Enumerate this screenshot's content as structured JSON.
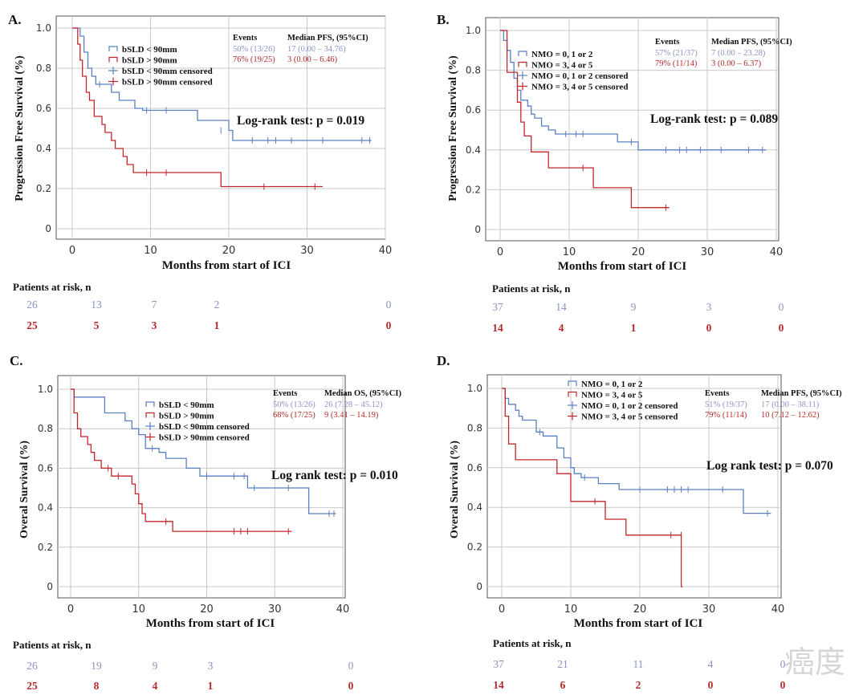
{
  "colors": {
    "blue": "#5b7fc4",
    "red": "#c0262b",
    "blueText": "#8a93c0",
    "redText": "#b22a2a",
    "grid": "#c8c8c8",
    "axis": "#555555"
  },
  "watermark": "癌度",
  "chart_data": [
    {
      "type": "line",
      "panel": "A.",
      "ylabel": "Progression Free Survival (%)",
      "xlabel": "Months from start of ICI",
      "xlim": [
        0,
        40
      ],
      "ylim": [
        0,
        1.0
      ],
      "xticks": [
        "0",
        "10",
        "20",
        "30",
        "40"
      ],
      "yticks": [
        "0",
        "0.2",
        "0.4",
        "0.6",
        "0.8",
        "1.0"
      ],
      "legend": [
        "bSLD < 90mm",
        "bSLD > 90mm",
        "bSLD < 90mm  censored",
        "bSLD > 90mm  censored"
      ],
      "events_header": "Events",
      "median_header": "Median PFS, (95%CI)",
      "events": [
        "50% (13/26)",
        "76% (19/25)"
      ],
      "medians": [
        "17 (0.00 – 34.76)",
        "3 (0.00 – 6.46)"
      ],
      "test": "Log-rank test: p = 0.019",
      "risk_title": "Patients at risk,  n",
      "risk": [
        [
          "26",
          "13",
          "7",
          "2",
          "0"
        ],
        [
          "25",
          "5",
          "3",
          "1",
          "0"
        ]
      ],
      "series": [
        {
          "name": "bSLD < 90mm",
          "color": "blue",
          "steps": [
            [
              0,
              1
            ],
            [
              1,
              0.96
            ],
            [
              1.5,
              0.88
            ],
            [
              2,
              0.8
            ],
            [
              2.5,
              0.76
            ],
            [
              3,
              0.72
            ],
            [
              5,
              0.68
            ],
            [
              6,
              0.64
            ],
            [
              8,
              0.6
            ],
            [
              9,
              0.59
            ],
            [
              16,
              0.54
            ],
            [
              20,
              0.49
            ],
            [
              20.5,
              0.44
            ],
            [
              38.2,
              0.44
            ]
          ],
          "censor": [
            [
              3.5,
              0.72
            ],
            [
              9.5,
              0.59
            ],
            [
              12,
              0.59
            ],
            [
              19,
              0.49
            ],
            [
              23,
              0.44
            ],
            [
              25,
              0.44
            ],
            [
              26,
              0.44
            ],
            [
              28,
              0.44
            ],
            [
              32,
              0.44
            ],
            [
              37,
              0.44
            ],
            [
              38,
              0.44
            ]
          ]
        },
        {
          "name": "bSLD > 90mm",
          "color": "red",
          "steps": [
            [
              0,
              1
            ],
            [
              0.7,
              0.92
            ],
            [
              1,
              0.84
            ],
            [
              1.3,
              0.76
            ],
            [
              1.8,
              0.68
            ],
            [
              2.2,
              0.64
            ],
            [
              2.8,
              0.56
            ],
            [
              3.8,
              0.52
            ],
            [
              4.2,
              0.48
            ],
            [
              5,
              0.44
            ],
            [
              5.5,
              0.4
            ],
            [
              6.5,
              0.36
            ],
            [
              7,
              0.32
            ],
            [
              7.8,
              0.28
            ],
            [
              19,
              0.21
            ],
            [
              32,
              0.21
            ]
          ],
          "censor": [
            [
              9.5,
              0.28
            ],
            [
              12,
              0.28
            ],
            [
              24.5,
              0.21
            ],
            [
              31,
              0.21
            ]
          ]
        }
      ]
    },
    {
      "type": "line",
      "panel": "B.",
      "ylabel": "Progression Free Survival (%)",
      "xlabel": "Months from start of ICI",
      "xlim": [
        0,
        40
      ],
      "ylim": [
        0,
        1.0
      ],
      "xticks": [
        "0",
        "10",
        "20",
        "30",
        "40"
      ],
      "yticks": [
        "0",
        "0.2",
        "0.4",
        "0.6",
        "0.8",
        "1.0"
      ],
      "legend": [
        "NMO = 0, 1 or 2",
        "NMO = 3, 4 or 5",
        "NMO = 0, 1 or 2 censored",
        "NMO = 3, 4 or 5 censored"
      ],
      "events_header": "Events",
      "median_header": "Median PFS, (95%CI)",
      "events": [
        "57% (21/37)",
        "79% (11/14)"
      ],
      "medians": [
        "7 (0.00 – 23.28)",
        "3 (0.00 – 6.37)"
      ],
      "test": "Log-rank test: p = 0.089",
      "risk_title": "Patients at risk,  n",
      "risk": [
        [
          "37",
          "14",
          "9",
          "3",
          "0"
        ],
        [
          "14",
          "4",
          "1",
          "0",
          "0"
        ]
      ],
      "series": [
        {
          "name": "NMO = 0, 1 or 2",
          "color": "blue",
          "steps": [
            [
              0,
              1
            ],
            [
              0.5,
              0.95
            ],
            [
              1,
              0.9
            ],
            [
              1.5,
              0.84
            ],
            [
              2,
              0.76
            ],
            [
              2.5,
              0.7
            ],
            [
              3,
              0.65
            ],
            [
              4,
              0.62
            ],
            [
              4.5,
              0.58
            ],
            [
              5,
              0.56
            ],
            [
              6,
              0.52
            ],
            [
              7,
              0.5
            ],
            [
              8,
              0.48
            ],
            [
              17,
              0.44
            ],
            [
              20,
              0.4
            ],
            [
              38.5,
              0.4
            ]
          ],
          "censor": [
            [
              9.5,
              0.48
            ],
            [
              11,
              0.48
            ],
            [
              12,
              0.48
            ],
            [
              19,
              0.44
            ],
            [
              24,
              0.4
            ],
            [
              26,
              0.4
            ],
            [
              27,
              0.4
            ],
            [
              29,
              0.4
            ],
            [
              32,
              0.4
            ],
            [
              36,
              0.4
            ],
            [
              38,
              0.4
            ]
          ]
        },
        {
          "name": "NMO = 3, 4 or 5",
          "color": "red",
          "steps": [
            [
              0,
              1
            ],
            [
              1,
              0.79
            ],
            [
              2.5,
              0.64
            ],
            [
              3,
              0.54
            ],
            [
              3.5,
              0.47
            ],
            [
              4.5,
              0.39
            ],
            [
              7,
              0.31
            ],
            [
              13.5,
              0.21
            ],
            [
              19,
              0.11
            ],
            [
              24.5,
              0.11
            ]
          ],
          "censor": [
            [
              12,
              0.31
            ],
            [
              24,
              0.11
            ]
          ]
        }
      ]
    },
    {
      "type": "line",
      "panel": "C.",
      "ylabel": "Overal Survival (%)",
      "xlabel": "Months from start of ICI",
      "xlim": [
        0,
        40
      ],
      "ylim": [
        0,
        1.0
      ],
      "xticks": [
        "0",
        "10",
        "20",
        "30",
        "40"
      ],
      "yticks": [
        "0",
        "0.2",
        "0.4",
        "0.6",
        "0.8",
        "1.0"
      ],
      "legend": [
        "bSLD < 90mm",
        "bSLD > 90mm",
        "bSLD < 90mm censored",
        "bSLD > 90mm  censored"
      ],
      "events_header": "Events",
      "median_header": "Median OS, (95%CI)",
      "events": [
        "50% (13/26)",
        "68% (17/25)"
      ],
      "medians": [
        "26 (7.28 – 45.12)",
        "9 (3.41 – 14.19)"
      ],
      "test": "Log rank test: p = 0.010",
      "risk_title": "Patients at risk,  n",
      "risk": [
        [
          "26",
          "19",
          "9",
          "3",
          "0"
        ],
        [
          "25",
          "8",
          "4",
          "1",
          "0"
        ]
      ],
      "series": [
        {
          "name": "bSLD < 90mm",
          "color": "blue",
          "steps": [
            [
              0,
              1
            ],
            [
              0.5,
              0.96
            ],
            [
              5,
              0.88
            ],
            [
              8,
              0.84
            ],
            [
              9,
              0.8
            ],
            [
              10,
              0.77
            ],
            [
              11,
              0.7
            ],
            [
              13,
              0.68
            ],
            [
              14,
              0.65
            ],
            [
              17,
              0.6
            ],
            [
              19,
              0.56
            ],
            [
              26,
              0.5
            ],
            [
              35,
              0.37
            ],
            [
              39,
              0.37
            ]
          ],
          "censor": [
            [
              12,
              0.7
            ],
            [
              20,
              0.56
            ],
            [
              24,
              0.56
            ],
            [
              25.5,
              0.56
            ],
            [
              27,
              0.5
            ],
            [
              32,
              0.5
            ],
            [
              38,
              0.37
            ],
            [
              38.7,
              0.37
            ]
          ]
        },
        {
          "name": "bSLD > 90mm",
          "color": "red",
          "steps": [
            [
              0,
              1
            ],
            [
              0.5,
              0.88
            ],
            [
              1,
              0.8
            ],
            [
              1.5,
              0.76
            ],
            [
              2.5,
              0.72
            ],
            [
              3,
              0.68
            ],
            [
              3.5,
              0.64
            ],
            [
              4.5,
              0.6
            ],
            [
              6,
              0.56
            ],
            [
              9,
              0.52
            ],
            [
              9.5,
              0.47
            ],
            [
              10,
              0.42
            ],
            [
              10.5,
              0.37
            ],
            [
              11,
              0.33
            ],
            [
              15,
              0.28
            ],
            [
              32.5,
              0.28
            ]
          ],
          "censor": [
            [
              5.5,
              0.6
            ],
            [
              7,
              0.56
            ],
            [
              14,
              0.33
            ],
            [
              24,
              0.28
            ],
            [
              25,
              0.28
            ],
            [
              26,
              0.28
            ],
            [
              32,
              0.28
            ]
          ]
        }
      ]
    },
    {
      "type": "line",
      "panel": "D.",
      "ylabel": "Overal Survival (%)",
      "xlabel": "Months from start of ICI",
      "xlim": [
        0,
        40
      ],
      "ylim": [
        0,
        1.0
      ],
      "xticks": [
        "0",
        "10",
        "20",
        "30",
        "40"
      ],
      "yticks": [
        "0",
        "0.2",
        "0.4",
        "0.6",
        "0.8",
        "1.0"
      ],
      "legend": [
        "NMO = 0, 1 or 2",
        "NMO = 3, 4 or 5",
        "NMO = 0, 1 or 2 censored",
        "NMO = 3, 4 or 5 censored"
      ],
      "events_header": "Events",
      "median_header": "Median PFS, (95%CI)",
      "events": [
        "51% (19/37)",
        "79% (11/14)"
      ],
      "medians": [
        "17 (0.00 – 38.11)",
        "10 (7.12 – 12.62)"
      ],
      "test": "Log rank test: p = 0.070",
      "risk_title": "Patients at risk,  n",
      "risk": [
        [
          "37",
          "21",
          "11",
          "4",
          "0"
        ],
        [
          "14",
          "6",
          "2",
          "0",
          "0"
        ]
      ],
      "series": [
        {
          "name": "NMO = 0, 1 or 2",
          "color": "blue",
          "steps": [
            [
              0,
              1
            ],
            [
              0.5,
              0.95
            ],
            [
              1,
              0.92
            ],
            [
              2,
              0.89
            ],
            [
              2.5,
              0.86
            ],
            [
              3,
              0.84
            ],
            [
              5,
              0.78
            ],
            [
              6,
              0.76
            ],
            [
              8,
              0.7
            ],
            [
              9,
              0.65
            ],
            [
              10,
              0.6
            ],
            [
              10.5,
              0.57
            ],
            [
              11.5,
              0.55
            ],
            [
              14,
              0.52
            ],
            [
              17,
              0.49
            ],
            [
              35,
              0.37
            ],
            [
              39,
              0.37
            ]
          ],
          "censor": [
            [
              5.5,
              0.78
            ],
            [
              12,
              0.55
            ],
            [
              20,
              0.49
            ],
            [
              24,
              0.49
            ],
            [
              25,
              0.49
            ],
            [
              26,
              0.49
            ],
            [
              27,
              0.49
            ],
            [
              32,
              0.49
            ],
            [
              38.5,
              0.37
            ]
          ]
        },
        {
          "name": "NMO = 3, 4 or 5",
          "color": "red",
          "steps": [
            [
              0,
              1
            ],
            [
              0.5,
              0.86
            ],
            [
              1,
              0.72
            ],
            [
              2,
              0.64
            ],
            [
              8,
              0.57
            ],
            [
              10,
              0.43
            ],
            [
              15,
              0.34
            ],
            [
              18,
              0.26
            ],
            [
              26,
              0
            ],
            [
              26.2,
              0
            ]
          ],
          "censor": [
            [
              13.5,
              0.43
            ],
            [
              24.5,
              0.26
            ],
            [
              26,
              0.26
            ]
          ]
        }
      ]
    }
  ]
}
